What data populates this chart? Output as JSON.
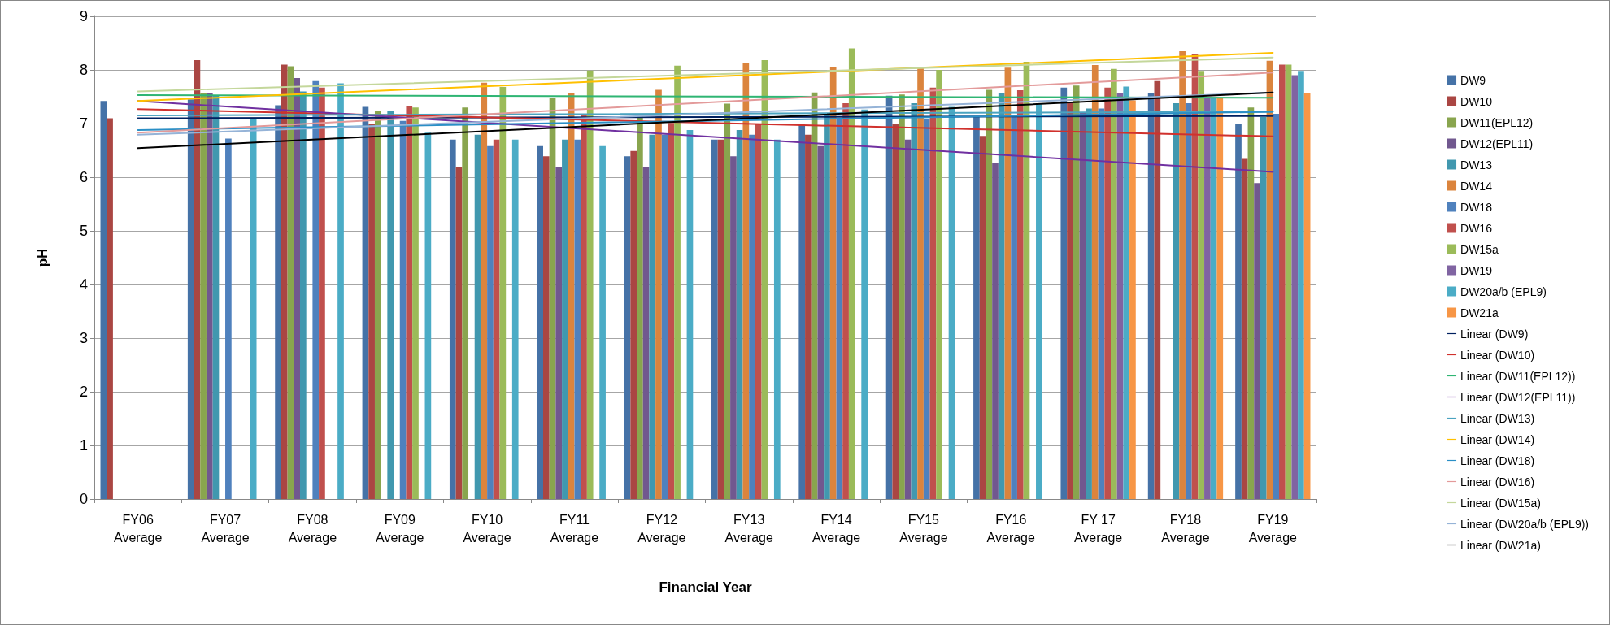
{
  "chart_data": {
    "type": "bar",
    "xlabel": "Financial Year",
    "ylabel": "pH",
    "categories": [
      "FY06 Average",
      "FY07 Average",
      "FY08 Average",
      "FY09 Average",
      "FY10 Average",
      "FY11 Average",
      "FY12 Average",
      "FY13 Average",
      "FY14 Average",
      "FY15 Average",
      "FY16 Average",
      "FY 17 Average",
      "FY18 Average",
      "FY19 Average"
    ],
    "ylim": [
      0,
      9
    ],
    "yticks": [
      0,
      1,
      2,
      3,
      4,
      5,
      6,
      7,
      8,
      9
    ],
    "grid": "y",
    "legend": "right",
    "series": [
      {
        "name": "DW9",
        "color": "#4572a7",
        "values": [
          7.42,
          7.45,
          7.34,
          7.31,
          6.7,
          6.58,
          6.39,
          6.7,
          6.98,
          7.52,
          7.13,
          7.67,
          7.57,
          7.0
        ]
      },
      {
        "name": "DW10",
        "color": "#aa4643",
        "values": [
          7.1,
          8.18,
          8.1,
          7.0,
          6.19,
          6.39,
          6.49,
          6.7,
          6.79,
          7.0,
          6.77,
          7.4,
          7.79,
          6.34
        ]
      },
      {
        "name": "DW11(EPL12)",
        "color": "#89a54e",
        "values": [
          null,
          7.56,
          8.07,
          7.24,
          7.3,
          7.48,
          7.15,
          7.37,
          7.58,
          7.54,
          7.63,
          7.71,
          null,
          7.3
        ]
      },
      {
        "name": "DW12(EPL11)",
        "color": "#71588f",
        "values": [
          null,
          7.56,
          7.85,
          null,
          null,
          6.19,
          6.19,
          6.39,
          6.58,
          6.7,
          6.27,
          7.21,
          null,
          5.89
        ]
      },
      {
        "name": "DW13",
        "color": "#4198af",
        "values": [
          null,
          7.53,
          7.6,
          7.24,
          6.79,
          6.7,
          6.79,
          6.88,
          7.17,
          7.38,
          7.56,
          7.28,
          7.38,
          7.12
        ]
      },
      {
        "name": "DW14",
        "color": "#db843d",
        "values": [
          null,
          null,
          null,
          null,
          7.76,
          7.56,
          7.63,
          8.12,
          8.06,
          8.05,
          8.04,
          8.09,
          8.35,
          8.17
        ]
      },
      {
        "name": "DW18",
        "color": "#4f81bd",
        "values": [
          null,
          6.72,
          7.79,
          7.05,
          6.58,
          6.7,
          6.79,
          6.79,
          7.08,
          7.08,
          7.13,
          7.28,
          7.38,
          7.18
        ]
      },
      {
        "name": "DW16",
        "color": "#c0504d",
        "values": [
          null,
          null,
          7.67,
          7.33,
          6.7,
          7.17,
          7.01,
          7.0,
          7.38,
          7.67,
          7.62,
          7.67,
          8.29,
          8.1
        ]
      },
      {
        "name": "DW15a",
        "color": "#9bbb59",
        "values": [
          null,
          null,
          null,
          7.3,
          7.68,
          7.99,
          8.08,
          8.18,
          8.4,
          8.0,
          8.15,
          8.02,
          7.98,
          8.1
        ]
      },
      {
        "name": "DW19",
        "color": "#8064a2",
        "values": [
          null,
          null,
          null,
          null,
          null,
          null,
          null,
          null,
          null,
          null,
          null,
          7.57,
          7.48,
          7.9
        ]
      },
      {
        "name": "DW20a/b (EPL9)",
        "color": "#4bacc6",
        "values": [
          null,
          7.1,
          7.75,
          6.83,
          6.7,
          6.58,
          6.88,
          6.7,
          7.26,
          7.31,
          7.36,
          7.69,
          7.47,
          7.98
        ]
      },
      {
        "name": "DW21a",
        "color": "#f79646",
        "values": [
          null,
          null,
          null,
          null,
          null,
          null,
          null,
          null,
          null,
          null,
          null,
          7.43,
          7.47,
          7.57
        ]
      },
      {
        "name": "Linear (DW9)",
        "type": "line",
        "color": "#002060",
        "values": [
          7.1,
          null,
          null,
          null,
          null,
          null,
          null,
          null,
          null,
          null,
          null,
          null,
          null,
          7.14
        ]
      },
      {
        "name": "Linear (DW10)",
        "type": "line",
        "color": "#d0312d",
        "values": [
          7.27,
          null,
          null,
          null,
          null,
          null,
          null,
          null,
          null,
          null,
          null,
          null,
          null,
          6.76
        ]
      },
      {
        "name": "Linear (DW11(EPL12))",
        "type": "line",
        "color": "#2fb573",
        "values": [
          7.53,
          null,
          null,
          null,
          null,
          null,
          null,
          null,
          null,
          null,
          null,
          null,
          null,
          7.48
        ]
      },
      {
        "name": "Linear (DW12(EPL11))",
        "type": "line",
        "color": "#7030a0",
        "values": [
          7.42,
          null,
          null,
          null,
          null,
          null,
          null,
          null,
          null,
          null,
          null,
          null,
          null,
          6.1
        ]
      },
      {
        "name": "Linear (DW13)",
        "type": "line",
        "color": "#4aa3c0",
        "values": [
          7.15,
          null,
          null,
          null,
          null,
          null,
          null,
          null,
          null,
          null,
          null,
          null,
          null,
          7.22
        ]
      },
      {
        "name": "Linear (DW14)",
        "type": "line",
        "color": "#ffc000",
        "values": [
          7.42,
          null,
          null,
          null,
          null,
          null,
          null,
          null,
          null,
          null,
          null,
          null,
          null,
          8.32
        ]
      },
      {
        "name": "Linear (DW18)",
        "type": "line",
        "color": "#2a8fc6",
        "values": [
          6.88,
          null,
          null,
          null,
          null,
          null,
          null,
          null,
          null,
          null,
          null,
          null,
          null,
          7.22
        ]
      },
      {
        "name": "Linear (DW16)",
        "type": "line",
        "color": "#e39a9a",
        "values": [
          6.83,
          null,
          null,
          null,
          null,
          null,
          null,
          null,
          null,
          null,
          null,
          null,
          null,
          7.95
        ]
      },
      {
        "name": "Linear (DW15a)",
        "type": "line",
        "color": "#c4d79b",
        "values": [
          7.6,
          null,
          null,
          null,
          null,
          null,
          null,
          null,
          null,
          null,
          null,
          null,
          null,
          8.23
        ]
      },
      {
        "name": "Linear (DW20a/b (EPL9))",
        "type": "line",
        "color": "#95b3d7",
        "values": [
          6.79,
          null,
          null,
          null,
          null,
          null,
          null,
          null,
          null,
          null,
          null,
          null,
          null,
          7.58
        ]
      },
      {
        "name": "Linear (DW21a)",
        "type": "line",
        "color": "#000000",
        "values": [
          6.54,
          null,
          null,
          null,
          null,
          null,
          null,
          null,
          null,
          null,
          null,
          null,
          null,
          7.58
        ]
      }
    ]
  }
}
